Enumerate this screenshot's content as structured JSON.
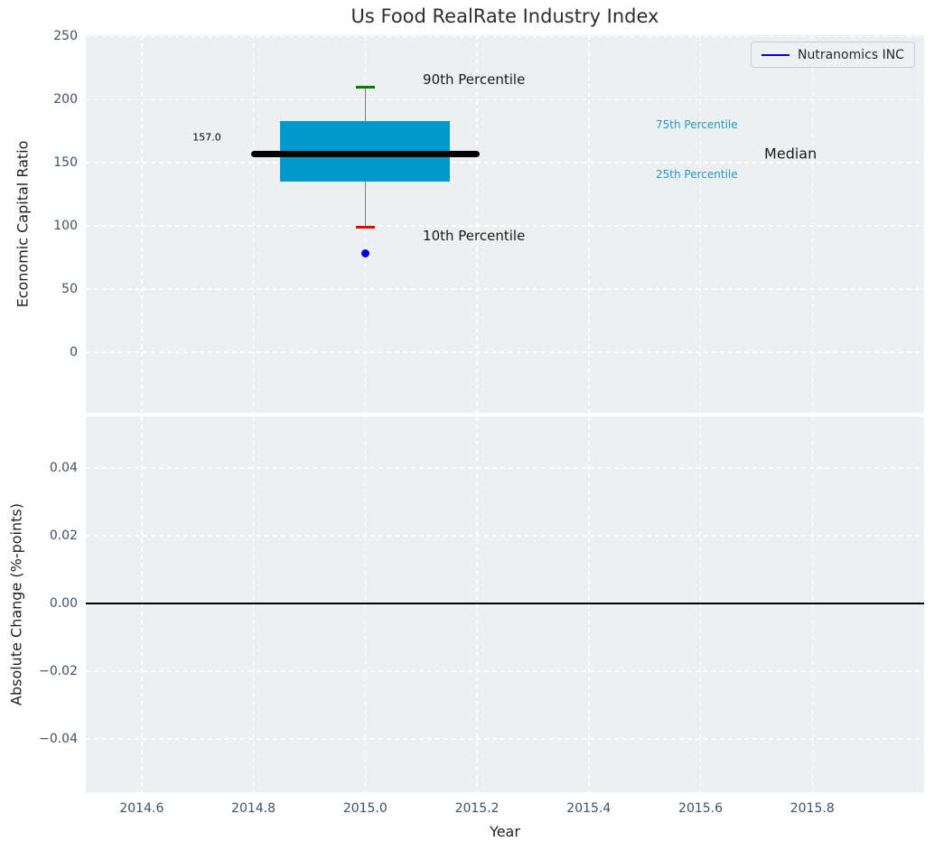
{
  "figure": {
    "title": "Us Food RealRate Industry Index"
  },
  "legend": {
    "label": "Nutranomics INC",
    "line_color": "#0000e0",
    "position": "upper right"
  },
  "colors": {
    "axes_background": "#ecf0f1",
    "grid": "#ffffff",
    "box_fill": "#009acd",
    "median_line": "#000000",
    "whisker": "#7f7f7f",
    "cap_90th": "#007d00",
    "cap_10th": "#e60000",
    "company_point": "#0000e0",
    "percentile_text": "#2598c8",
    "tick_text": "#3f5266",
    "zero_line": "#000000"
  },
  "chart_data": [
    {
      "type": "boxplot",
      "title": "Us Food RealRate Industry Index",
      "ylabel": "Economic Capital Ratio",
      "xlabel": "",
      "grid": true,
      "legend_position": "upper right",
      "xlim": [
        2014.5,
        2016.0
      ],
      "ylim": [
        -48,
        251
      ],
      "xticks": [
        2014.6,
        2014.8,
        2015.0,
        2015.2,
        2015.4,
        2015.6,
        2015.8
      ],
      "xtick_labels": [
        "2014.6",
        "2014.8",
        "2015.0",
        "2015.2",
        "2015.4",
        "2015.6",
        "2015.8"
      ],
      "yticks": [
        0,
        50,
        100,
        150,
        200,
        250
      ],
      "ytick_labels": [
        "0",
        "50",
        "100",
        "150",
        "200",
        "250"
      ],
      "show_xtick_labels": false,
      "box": {
        "x": 2015.0,
        "p10": 99,
        "p25": 135,
        "median": 157.0,
        "p75": 183,
        "p90": 210,
        "median_label": "157.0",
        "box_half_width": 0.152,
        "median_half_width": 0.205,
        "cap_half_width": 0.0165
      },
      "series": [
        {
          "name": "Nutranomics INC",
          "type": "scatter",
          "x": [
            2015.0
          ],
          "y": [
            78
          ],
          "color": "#0000e0"
        }
      ],
      "annotations": [
        {
          "text": "90th Percentile",
          "x": 2015.103,
          "y": 216,
          "size": 15,
          "color": "#1a1a1a",
          "anchor": "left",
          "name": "annotation-90th-percentile"
        },
        {
          "text": "10th Percentile",
          "x": 2015.103,
          "y": 92,
          "size": 15,
          "color": "#1a1a1a",
          "anchor": "left",
          "name": "annotation-10th-percentile"
        },
        {
          "text": "75th Percentile",
          "x": 2015.52,
          "y": 180,
          "size": 12,
          "color": "#2598c8",
          "anchor": "left",
          "name": "annotation-75th-percentile"
        },
        {
          "text": "25th Percentile",
          "x": 2015.52,
          "y": 141,
          "size": 12,
          "color": "#2598c8",
          "anchor": "left",
          "name": "annotation-25th-percentile"
        },
        {
          "text": "Median",
          "x": 2015.714,
          "y": 157.5,
          "size": 16,
          "color": "#1a1a1a",
          "anchor": "left",
          "name": "annotation-median"
        },
        {
          "text": "157.0",
          "x": 2014.742,
          "y": 170.5,
          "size": 11,
          "color": "#000000",
          "anchor": "right",
          "name": "annotation-median-value"
        }
      ]
    },
    {
      "type": "line",
      "ylabel": "Absolute Change (%-points)",
      "xlabel": "Year",
      "grid": true,
      "xlim": [
        2014.5,
        2016.0
      ],
      "ylim": [
        -0.0557,
        0.0552
      ],
      "xticks": [
        2014.6,
        2014.8,
        2015.0,
        2015.2,
        2015.4,
        2015.6,
        2015.8
      ],
      "xtick_labels": [
        "2014.6",
        "2014.8",
        "2015.0",
        "2015.2",
        "2015.4",
        "2015.6",
        "2015.8"
      ],
      "yticks": [
        0.04,
        0.02,
        0.0,
        -0.02,
        -0.04
      ],
      "ytick_labels": [
        "0.04",
        "0.02",
        "0.00",
        "−0.02",
        "−0.04"
      ],
      "show_xtick_labels": true,
      "zero_line": 0.0,
      "series": []
    }
  ]
}
